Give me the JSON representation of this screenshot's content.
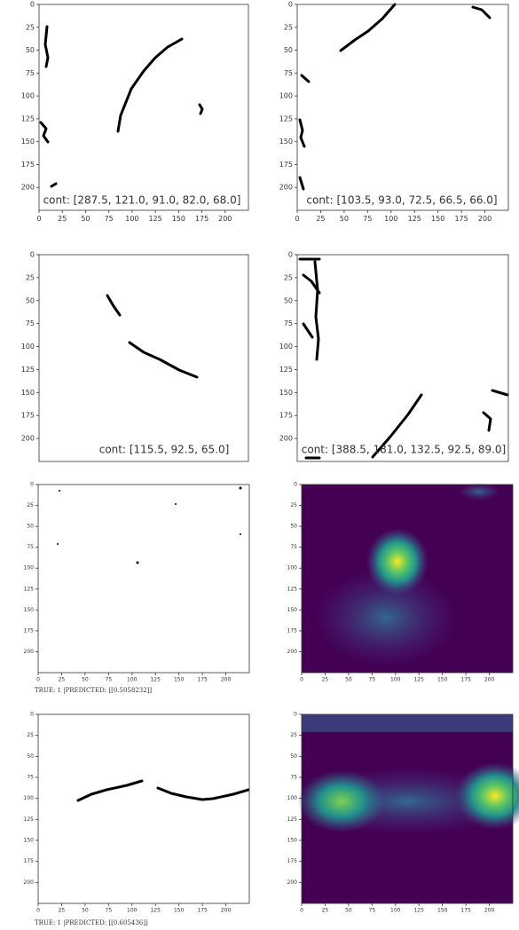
{
  "chart_data": [
    {
      "type": "image",
      "caption": "cont: [287.5, 121.0, 91.0, 82.0, 68.0]",
      "xlim": [
        0,
        225
      ],
      "ylim": [
        0,
        225
      ],
      "xticks": [
        0,
        25,
        50,
        75,
        100,
        125,
        150,
        175,
        200
      ],
      "yticks": [
        0,
        25,
        50,
        75,
        100,
        125,
        150,
        175,
        200
      ]
    },
    {
      "type": "image",
      "caption": "cont: [103.5, 93.0, 72.5, 66.5, 66.0]",
      "xlim": [
        0,
        225
      ],
      "ylim": [
        0,
        225
      ],
      "xticks": [
        0,
        25,
        50,
        75,
        100,
        125,
        150,
        175,
        200
      ],
      "yticks": [
        0,
        25,
        50,
        75,
        100,
        125,
        150,
        175,
        200
      ]
    },
    {
      "type": "image",
      "caption": "cont: [115.5, 92.5, 65.0]",
      "xlim": [
        0,
        225
      ],
      "ylim": [
        0,
        225
      ],
      "xticks": [],
      "yticks": [
        0,
        25,
        50,
        75,
        100,
        125,
        150,
        175,
        200
      ]
    },
    {
      "type": "image",
      "caption": "cont: [388.5, 181.0, 132.5, 92.5, 89.0]",
      "xlim": [
        0,
        225
      ],
      "ylim": [
        0,
        225
      ],
      "xticks": [],
      "yticks": [
        0,
        25,
        50,
        75,
        100,
        125,
        150,
        175,
        200
      ]
    },
    {
      "type": "image",
      "caption": "TRUE: 1 |PREDICTED: [[0.5058232]]",
      "xlim": [
        0,
        225
      ],
      "ylim": [
        0,
        225
      ],
      "xticks": [
        0,
        25,
        50,
        75,
        100,
        125,
        150,
        175,
        200
      ],
      "yticks": [
        0,
        25,
        50,
        75,
        100,
        125,
        150,
        175,
        200
      ]
    },
    {
      "type": "heatmap",
      "xlim": [
        0,
        225
      ],
      "ylim": [
        0,
        225
      ],
      "xticks": [
        0,
        25,
        50,
        75,
        100,
        125,
        150,
        175,
        200
      ],
      "yticks": [
        0,
        25,
        50,
        75,
        100,
        125,
        150,
        175,
        200
      ]
    },
    {
      "type": "image",
      "caption": "TRUE: 1 |PREDICTED: [[0.605436]]",
      "xlim": [
        0,
        225
      ],
      "ylim": [
        0,
        225
      ],
      "xticks": [
        0,
        25,
        50,
        75,
        100,
        125,
        150,
        175,
        200
      ],
      "yticks": [
        0,
        25,
        50,
        75,
        100,
        125,
        150,
        175,
        200
      ]
    },
    {
      "type": "heatmap",
      "xlim": [
        0,
        225
      ],
      "ylim": [
        0,
        225
      ],
      "xticks": [
        0,
        25,
        50,
        75,
        100,
        125,
        150,
        175,
        200
      ],
      "yticks": [
        0,
        25,
        50,
        75,
        100,
        125,
        150,
        175,
        200
      ]
    }
  ]
}
